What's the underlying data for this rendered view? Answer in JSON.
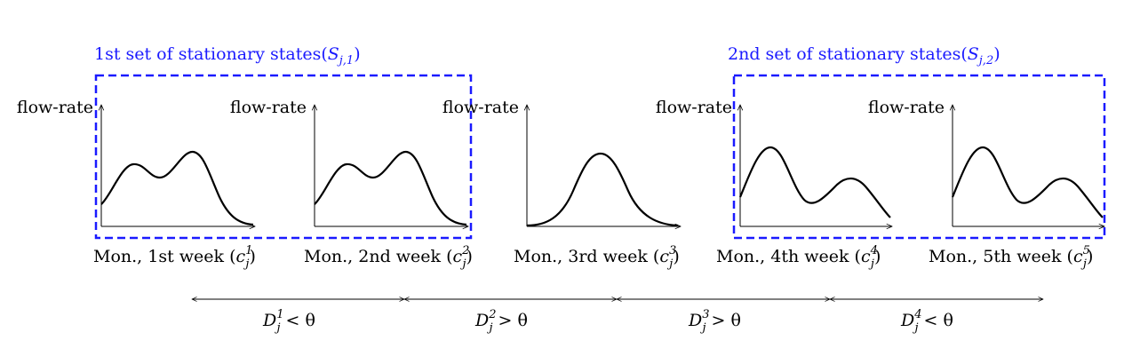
{
  "sets": [
    {
      "label": "1st set of stationary states(",
      "sym_main": "S",
      "sym_sub": "j,1",
      "close": ")"
    },
    {
      "label": "2nd set of stationary states(",
      "sym_main": "S",
      "sym_sub": "j,2",
      "close": ")"
    }
  ],
  "y_axis_label": "flow-rate",
  "panels": [
    {
      "caption": "Mon., 1st week (",
      "sym": "c",
      "sub": "j",
      "sup": "1",
      "close": ")",
      "shape": "double-hump-rising"
    },
    {
      "caption": "Mon., 2nd week (",
      "sym": "c",
      "sub": "j",
      "sup": "2",
      "close": ")",
      "shape": "double-hump-rising"
    },
    {
      "caption": "Mon., 3rd week (",
      "sym": "c",
      "sub": "j",
      "sup": "3",
      "close": ")",
      "shape": "single-hump"
    },
    {
      "caption": "Mon., 4th week (",
      "sym": "c",
      "sub": "j",
      "sup": "4",
      "close": ")",
      "shape": "double-hump-falling"
    },
    {
      "caption": "Mon., 5th week (",
      "sym": "c",
      "sub": "j",
      "sup": "5",
      "close": ")",
      "shape": "double-hump-falling"
    }
  ],
  "distances": [
    {
      "sym": "D",
      "sub": "j",
      "sup": "1",
      "rel": "< θ"
    },
    {
      "sym": "D",
      "sub": "j",
      "sup": "2",
      "rel": "> θ"
    },
    {
      "sym": "D",
      "sub": "j",
      "sup": "3",
      "rel": "> θ"
    },
    {
      "sym": "D",
      "sub": "j",
      "sup": "4",
      "rel": "< θ"
    }
  ],
  "colors": {
    "set_box": "#1a1aff",
    "set_label": "#1a1aff",
    "ink": "#000000"
  }
}
